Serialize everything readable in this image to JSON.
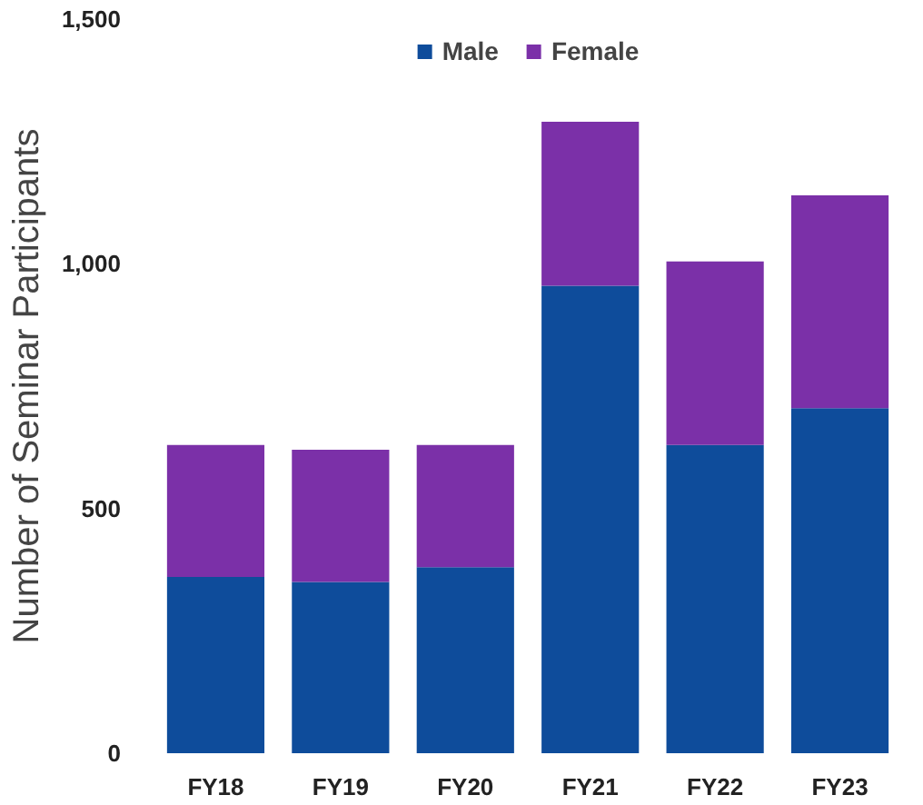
{
  "chart_data": {
    "type": "bar",
    "stacked": true,
    "ylabel": "Number of Seminar Participants",
    "categories": [
      "FY18",
      "FY19",
      "FY20",
      "FY21",
      "FY22",
      "FY23"
    ],
    "series": [
      {
        "name": "Male",
        "color": "#0e4c9b",
        "values": [
          360,
          350,
          380,
          955,
          630,
          705
        ]
      },
      {
        "name": "Female",
        "color": "#7b30a8",
        "values": [
          270,
          270,
          250,
          335,
          375,
          435
        ]
      }
    ],
    "ylim": [
      0,
      1500
    ],
    "yticks": [
      0,
      {
        "value": 500,
        "label": "500"
      },
      {
        "value": 1000,
        "label": "1,000"
      },
      {
        "value": 1500,
        "label": "1,500"
      }
    ],
    "grid": false,
    "legend": "top"
  }
}
